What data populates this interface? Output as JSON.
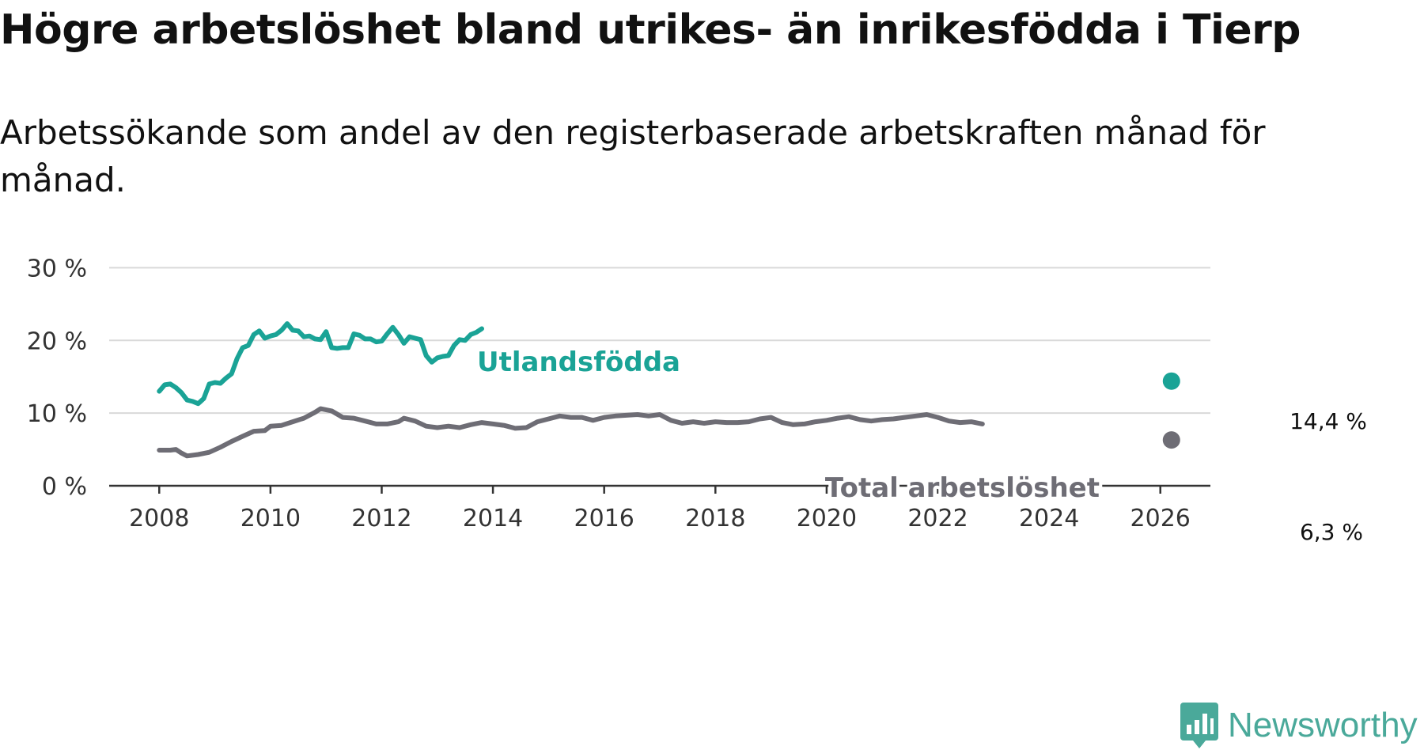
{
  "title": "Högre arbetslöshet bland utrikes- än inrikesfödda i Tierp",
  "subtitle": "Arbetssökande som andel av den registerbaserade arbetskraften månad för månad.",
  "brand": {
    "name": "Newsworthy",
    "icon": "newsworthy-logo-icon",
    "color": "#4aa99a"
  },
  "chart_data": {
    "type": "line",
    "title": "Högre arbetslöshet bland utrikes- än inrikesfödda i Tierp",
    "xlabel": "",
    "ylabel": "",
    "xlim": [
      2007.1,
      2026.9
    ],
    "ylim": [
      0,
      32
    ],
    "grid": true,
    "x_ticks": [
      2008,
      2010,
      2012,
      2014,
      2016,
      2018,
      2020,
      2022,
      2024,
      2026
    ],
    "x_tick_labels": [
      "2008",
      "2010",
      "2012",
      "2014",
      "2016",
      "2018",
      "2020",
      "2022",
      "2024",
      "2026"
    ],
    "y_ticks": [
      0,
      10,
      20,
      30
    ],
    "y_tick_labels": [
      "0 %",
      "10 %",
      "20 %",
      "30 %"
    ],
    "series": [
      {
        "name": "Utlandsfödda",
        "color": "#1aa396",
        "end_label": "14,4 %",
        "end_value": 14.4,
        "points": [
          [
            2008.0,
            13.0
          ],
          [
            2008.1,
            13.9
          ],
          [
            2008.2,
            14.0
          ],
          [
            2008.3,
            13.5
          ],
          [
            2008.4,
            12.8
          ],
          [
            2008.5,
            11.8
          ],
          [
            2008.6,
            11.6
          ],
          [
            2008.7,
            11.3
          ],
          [
            2008.8,
            12.0
          ],
          [
            2008.9,
            14.0
          ],
          [
            2009.0,
            14.2
          ],
          [
            2009.1,
            14.1
          ],
          [
            2009.2,
            14.8
          ],
          [
            2009.3,
            15.4
          ],
          [
            2009.4,
            17.5
          ],
          [
            2009.5,
            19.0
          ],
          [
            2009.6,
            19.3
          ],
          [
            2009.7,
            20.8
          ],
          [
            2009.8,
            21.3
          ],
          [
            2009.9,
            20.3
          ],
          [
            2010.0,
            20.6
          ],
          [
            2010.1,
            20.8
          ],
          [
            2010.2,
            21.4
          ],
          [
            2010.3,
            22.3
          ],
          [
            2010.4,
            21.4
          ],
          [
            2010.5,
            21.3
          ],
          [
            2010.6,
            20.5
          ],
          [
            2010.7,
            20.6
          ],
          [
            2010.8,
            20.2
          ],
          [
            2010.9,
            20.1
          ],
          [
            2011.0,
            21.2
          ],
          [
            2011.1,
            19.0
          ],
          [
            2011.2,
            18.9
          ],
          [
            2011.3,
            19.0
          ],
          [
            2011.4,
            19.0
          ],
          [
            2011.5,
            20.9
          ],
          [
            2011.6,
            20.7
          ],
          [
            2011.7,
            20.2
          ],
          [
            2011.8,
            20.2
          ],
          [
            2011.9,
            19.8
          ],
          [
            2012.0,
            19.9
          ],
          [
            2012.1,
            20.9
          ],
          [
            2012.2,
            21.8
          ],
          [
            2012.3,
            20.8
          ],
          [
            2012.4,
            19.6
          ],
          [
            2012.5,
            20.5
          ],
          [
            2012.6,
            20.3
          ],
          [
            2012.7,
            20.1
          ],
          [
            2012.8,
            17.9
          ],
          [
            2012.9,
            17.0
          ],
          [
            2013.0,
            17.6
          ],
          [
            2013.1,
            17.8
          ],
          [
            2013.2,
            17.9
          ],
          [
            2013.3,
            19.3
          ],
          [
            2013.4,
            20.1
          ],
          [
            2013.5,
            20.0
          ],
          [
            2013.6,
            20.8
          ],
          [
            2013.7,
            21.1
          ],
          [
            2013.8,
            21.6
          ]
        ]
      },
      {
        "name": "Total arbetslöshet",
        "color": "#6e6d75",
        "end_label": "6,3 %",
        "end_value": 6.3,
        "points": [
          [
            2008.0,
            4.9
          ],
          [
            2008.2,
            4.9
          ],
          [
            2008.3,
            5.0
          ],
          [
            2008.4,
            4.5
          ],
          [
            2008.5,
            4.1
          ],
          [
            2008.7,
            4.3
          ],
          [
            2008.9,
            4.6
          ],
          [
            2009.1,
            5.3
          ],
          [
            2009.3,
            6.1
          ],
          [
            2009.5,
            6.8
          ],
          [
            2009.7,
            7.5
          ],
          [
            2009.9,
            7.6
          ],
          [
            2010.0,
            8.2
          ],
          [
            2010.2,
            8.3
          ],
          [
            2010.4,
            8.8
          ],
          [
            2010.6,
            9.3
          ],
          [
            2010.8,
            10.1
          ],
          [
            2010.9,
            10.6
          ],
          [
            2011.1,
            10.3
          ],
          [
            2011.3,
            9.4
          ],
          [
            2011.5,
            9.3
          ],
          [
            2011.7,
            8.9
          ],
          [
            2011.9,
            8.5
          ],
          [
            2012.1,
            8.5
          ],
          [
            2012.3,
            8.8
          ],
          [
            2012.4,
            9.3
          ],
          [
            2012.6,
            8.9
          ],
          [
            2012.8,
            8.2
          ],
          [
            2013.0,
            8.0
          ],
          [
            2013.2,
            8.2
          ],
          [
            2013.4,
            8.0
          ],
          [
            2013.6,
            8.4
          ],
          [
            2013.8,
            8.7
          ],
          [
            2014.0,
            8.5
          ],
          [
            2014.2,
            8.3
          ],
          [
            2014.4,
            7.9
          ],
          [
            2014.6,
            8.0
          ],
          [
            2014.8,
            8.8
          ],
          [
            2015.0,
            9.2
          ],
          [
            2015.2,
            9.6
          ],
          [
            2015.4,
            9.4
          ],
          [
            2015.6,
            9.4
          ],
          [
            2015.8,
            9.0
          ],
          [
            2016.0,
            9.4
          ],
          [
            2016.2,
            9.6
          ],
          [
            2016.4,
            9.7
          ],
          [
            2016.6,
            9.8
          ],
          [
            2016.8,
            9.6
          ],
          [
            2017.0,
            9.8
          ],
          [
            2017.2,
            9.0
          ],
          [
            2017.4,
            8.6
          ],
          [
            2017.6,
            8.8
          ],
          [
            2017.8,
            8.6
          ],
          [
            2018.0,
            8.8
          ],
          [
            2018.2,
            8.7
          ],
          [
            2018.4,
            8.7
          ],
          [
            2018.6,
            8.8
          ],
          [
            2018.8,
            9.2
          ],
          [
            2019.0,
            9.4
          ],
          [
            2019.2,
            8.7
          ],
          [
            2019.4,
            8.4
          ],
          [
            2019.6,
            8.5
          ],
          [
            2019.8,
            8.8
          ],
          [
            2020.0,
            9.0
          ],
          [
            2020.2,
            9.3
          ],
          [
            2020.4,
            9.5
          ],
          [
            2020.6,
            9.1
          ],
          [
            2020.8,
            8.9
          ],
          [
            2021.0,
            9.1
          ],
          [
            2021.2,
            9.2
          ],
          [
            2021.4,
            9.4
          ],
          [
            2021.6,
            9.6
          ],
          [
            2021.8,
            9.8
          ],
          [
            2022.0,
            9.4
          ],
          [
            2022.2,
            8.9
          ],
          [
            2022.4,
            8.7
          ],
          [
            2022.6,
            8.8
          ],
          [
            2022.8,
            8.5
          ]
        ]
      }
    ],
    "annotations": [
      {
        "text": "Utlandsfödda",
        "series": "Utlandsfödda",
        "x": 2016.3,
        "y": 25.1
      },
      {
        "text": "Total arbetslöshet",
        "series": "Total arbetslöshet",
        "x": 2024.2,
        "y": 8.2
      },
      {
        "text": "14,4 %",
        "series": "Utlandsfödda",
        "x": 2026.2,
        "y": 14.4
      },
      {
        "text": "6,3 %",
        "series": "Total arbetslöshet",
        "x": 2026.2,
        "y": 6.3
      }
    ]
  }
}
